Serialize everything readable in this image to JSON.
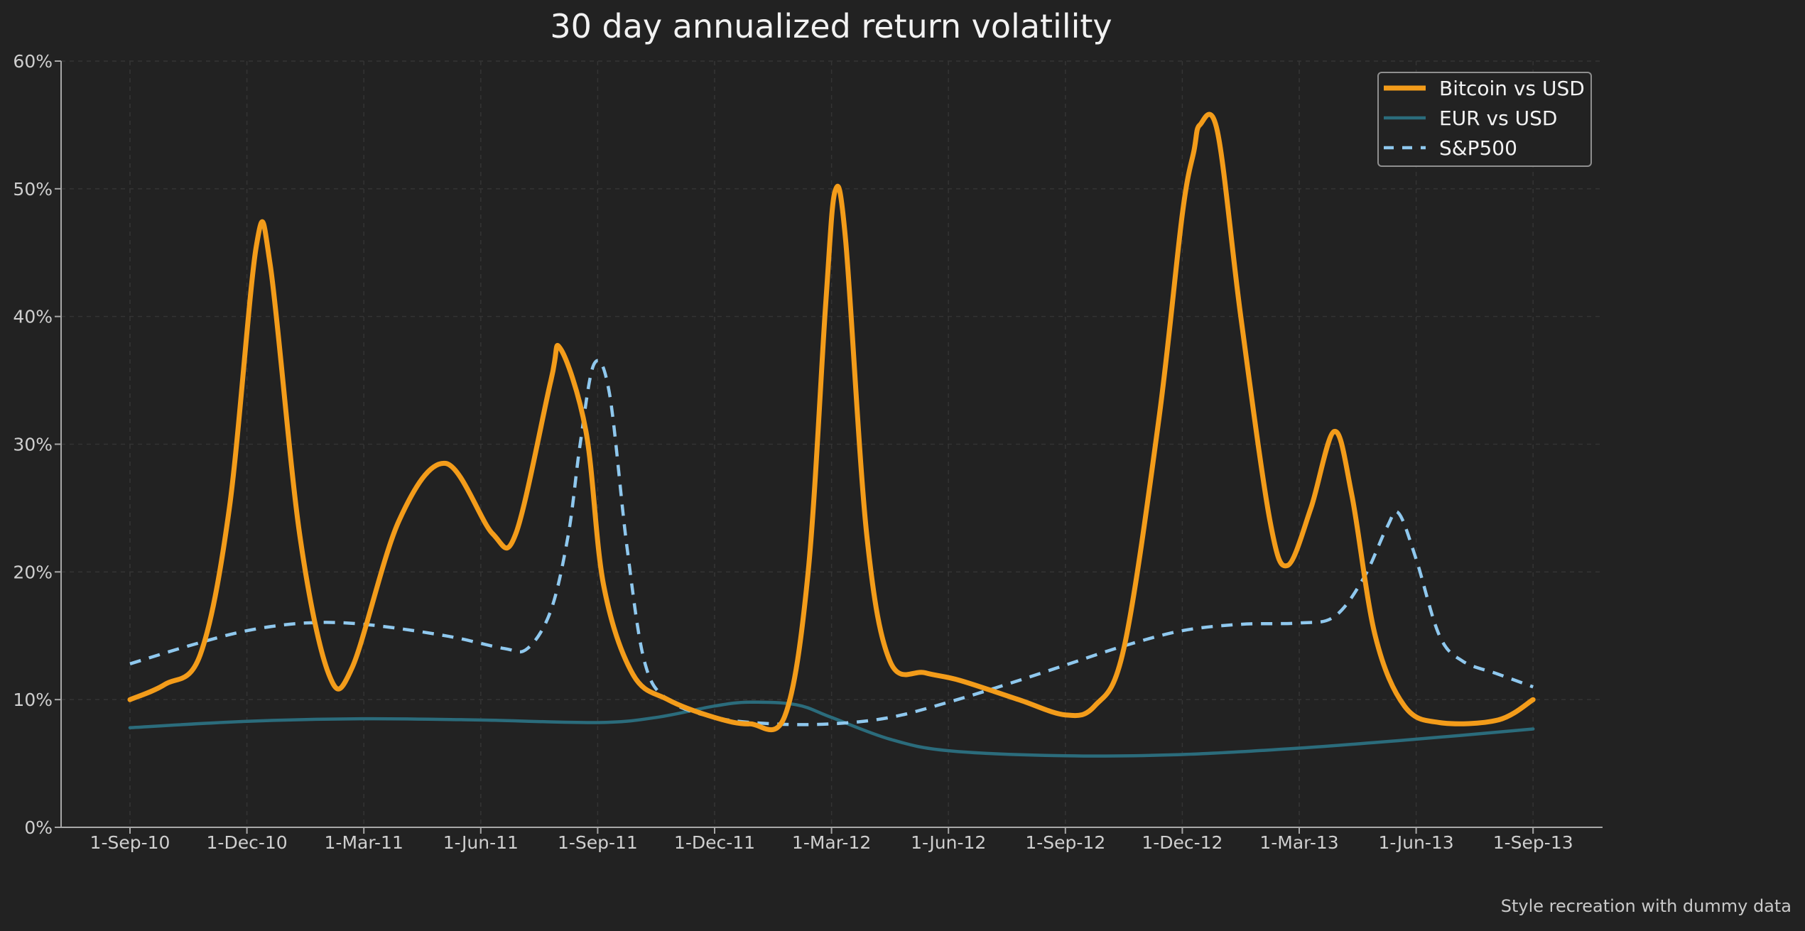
{
  "chart_data": {
    "type": "line",
    "title": "30 day annualized return volatility",
    "xlabel": "",
    "ylabel": "",
    "ylim": [
      0,
      60
    ],
    "y_ticks": [
      0,
      10,
      20,
      30,
      40,
      50,
      60
    ],
    "y_tick_labels": [
      "0%",
      "10%",
      "20%",
      "30%",
      "40%",
      "50%",
      "60%"
    ],
    "x_tick_labels": [
      "1-Sep-10",
      "1-Dec-10",
      "1-Mar-11",
      "1-Jun-11",
      "1-Sep-11",
      "1-Dec-11",
      "1-Mar-12",
      "1-Jun-12",
      "1-Sep-12",
      "1-Dec-12",
      "1-Mar-13",
      "1-Jun-13",
      "1-Sep-13"
    ],
    "xlim": [
      -0.6,
      12.6
    ],
    "grid": true,
    "legend_position": "top-right",
    "footnote": "Style recreation with dummy data",
    "series": [
      {
        "name": "Bitcoin vs USD",
        "color": "#f39c1a",
        "style": "solid",
        "points": [
          [
            0,
            10
          ],
          [
            0.3,
            11.2
          ],
          [
            0.6,
            13.5
          ],
          [
            0.85,
            25
          ],
          [
            1.08,
            45.5
          ],
          [
            1.2,
            44
          ],
          [
            1.45,
            23
          ],
          [
            1.7,
            12
          ],
          [
            1.9,
            12.5
          ],
          [
            2.3,
            24
          ],
          [
            2.7,
            28.5
          ],
          [
            3.1,
            23
          ],
          [
            3.3,
            23
          ],
          [
            3.6,
            35
          ],
          [
            3.68,
            37.5
          ],
          [
            3.9,
            31
          ],
          [
            4.05,
            19
          ],
          [
            4.3,
            12
          ],
          [
            4.6,
            10
          ],
          [
            5.0,
            8.6
          ],
          [
            5.3,
            8.1
          ],
          [
            5.6,
            8.7
          ],
          [
            5.8,
            20
          ],
          [
            5.95,
            41
          ],
          [
            6.03,
            49.8
          ],
          [
            6.12,
            46
          ],
          [
            6.3,
            23
          ],
          [
            6.5,
            13
          ],
          [
            6.8,
            12.1
          ],
          [
            7.1,
            11.5
          ],
          [
            7.6,
            10
          ],
          [
            8.0,
            8.8
          ],
          [
            8.25,
            9.5
          ],
          [
            8.5,
            14
          ],
          [
            8.8,
            32
          ],
          [
            9.0,
            48
          ],
          [
            9.1,
            53
          ],
          [
            9.15,
            55
          ],
          [
            9.3,
            54.5
          ],
          [
            9.5,
            40
          ],
          [
            9.75,
            24
          ],
          [
            9.9,
            20.5
          ],
          [
            10.1,
            25
          ],
          [
            10.3,
            31
          ],
          [
            10.45,
            26
          ],
          [
            10.65,
            15
          ],
          [
            10.9,
            9.5
          ],
          [
            11.2,
            8.2
          ],
          [
            11.7,
            8.4
          ],
          [
            12.0,
            10
          ]
        ]
      },
      {
        "name": "EUR vs USD",
        "color": "#2b6c7c",
        "style": "solid",
        "points": [
          [
            0,
            7.8
          ],
          [
            1,
            8.3
          ],
          [
            2,
            8.5
          ],
          [
            3,
            8.4
          ],
          [
            4,
            8.2
          ],
          [
            4.5,
            8.6
          ],
          [
            5,
            9.5
          ],
          [
            5.3,
            9.8
          ],
          [
            5.7,
            9.6
          ],
          [
            6,
            8.6
          ],
          [
            6.5,
            6.9
          ],
          [
            7,
            6.0
          ],
          [
            8,
            5.6
          ],
          [
            9,
            5.7
          ],
          [
            10,
            6.2
          ],
          [
            11,
            6.9
          ],
          [
            12,
            7.7
          ]
        ]
      },
      {
        "name": "S&P500",
        "color": "#8fc8ee",
        "style": "dashed",
        "points": [
          [
            0,
            12.8
          ],
          [
            0.5,
            14.2
          ],
          [
            1,
            15.4
          ],
          [
            1.5,
            16
          ],
          [
            2,
            15.9
          ],
          [
            2.7,
            15
          ],
          [
            3.2,
            14
          ],
          [
            3.4,
            14
          ],
          [
            3.6,
            17
          ],
          [
            3.75,
            23
          ],
          [
            3.85,
            30
          ],
          [
            3.97,
            36.3
          ],
          [
            4.1,
            34
          ],
          [
            4.25,
            22
          ],
          [
            4.4,
            13
          ],
          [
            4.6,
            10
          ],
          [
            5,
            8.6
          ],
          [
            5.5,
            8.1
          ],
          [
            6,
            8.1
          ],
          [
            6.5,
            8.6
          ],
          [
            7,
            9.8
          ],
          [
            7.5,
            11.2
          ],
          [
            8,
            12.7
          ],
          [
            8.5,
            14.2
          ],
          [
            9,
            15.4
          ],
          [
            9.5,
            15.9
          ],
          [
            10,
            16
          ],
          [
            10.3,
            16.5
          ],
          [
            10.55,
            19.5
          ],
          [
            10.75,
            23.5
          ],
          [
            10.85,
            24.6
          ],
          [
            11,
            21
          ],
          [
            11.2,
            15
          ],
          [
            11.4,
            13
          ],
          [
            11.7,
            12
          ],
          [
            12,
            11
          ]
        ]
      }
    ]
  }
}
